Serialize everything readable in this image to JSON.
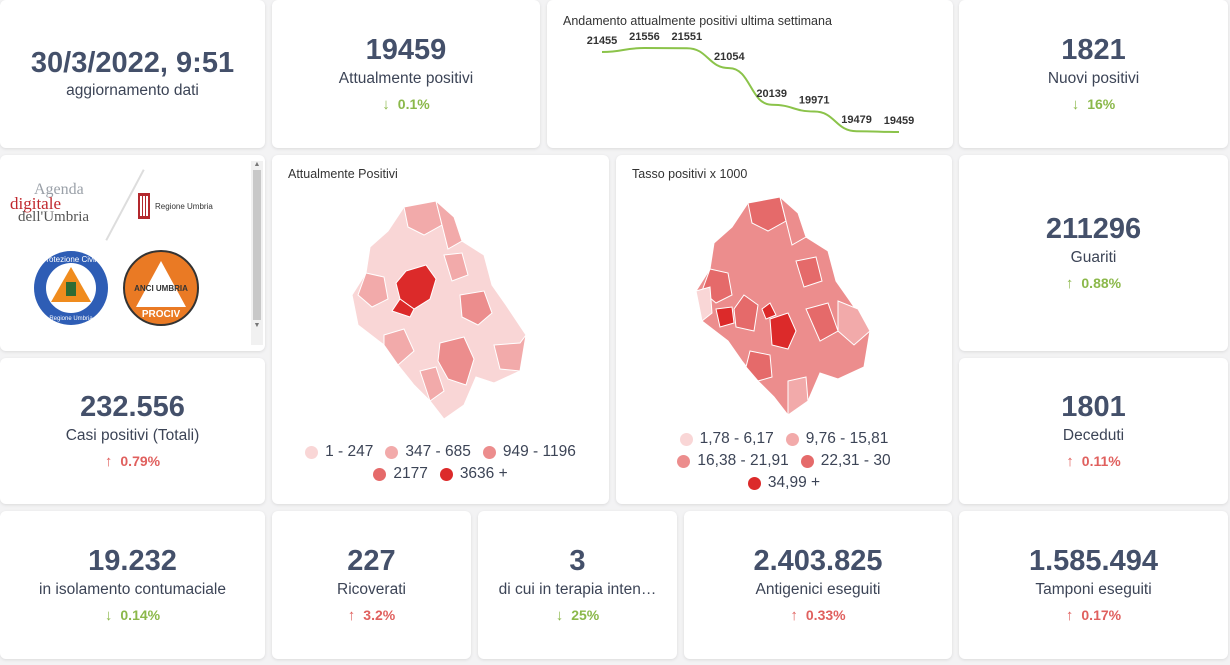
{
  "update": {
    "value": "30/3/2022, 9:51",
    "label": "aggiornamento dati"
  },
  "attualmente_positivi": {
    "value": "19459",
    "label": "Attualmente positivi",
    "change": "0.1%"
  },
  "trend": {
    "title": "Andamento attualmente positivi ultima settimana",
    "chart_data": {
      "type": "line",
      "values": [
        21455,
        21556,
        21551,
        21054,
        20139,
        19971,
        19479,
        19459
      ],
      "labels": [
        "21455",
        "21556",
        "21551",
        "21054",
        "20139",
        "19971",
        "19479",
        "19459"
      ]
    }
  },
  "nuovi_positivi": {
    "value": "1821",
    "label": "Nuovi positivi",
    "change": "16%"
  },
  "logos": {
    "agenda_line1": "Agenda",
    "agenda_line2": "digitale",
    "agenda_line3": "dell'Umbria",
    "regione": "Regione Umbria",
    "protezione_top": "Protezione Civile",
    "protezione_bottom": "Regione Umbria",
    "anci": "ANCI UMBRIA",
    "prociv": "PROCIV"
  },
  "map1": {
    "title": "Attualmente Positivi",
    "legend": [
      {
        "label": "1 - 247",
        "color": "#f9d6d6"
      },
      {
        "label": "347 - 685",
        "color": "#f2aaaa"
      },
      {
        "label": "949 - 1196",
        "color": "#ec8d8d"
      },
      {
        "label": "2177",
        "color": "#e56a6a"
      },
      {
        "label": "3636 +",
        "color": "#dc2a2a"
      }
    ]
  },
  "map2": {
    "title": "Tasso positivi x 1000",
    "legend": [
      {
        "label": "1,78 - 6,17",
        "color": "#f9d6d6"
      },
      {
        "label": "9,76 - 15,81",
        "color": "#f2aaaa"
      },
      {
        "label": "16,38 - 21,91",
        "color": "#ec8d8d"
      },
      {
        "label": "22,31 - 30",
        "color": "#e56a6a"
      },
      {
        "label": "34,99 +",
        "color": "#dc2a2a"
      }
    ]
  },
  "guariti": {
    "value": "211296",
    "label": "Guariti",
    "change": "0.88%"
  },
  "casi_totali": {
    "value": "232.556",
    "label": "Casi positivi (Totali)",
    "change": "0.79%"
  },
  "deceduti": {
    "value": "1801",
    "label": "Deceduti",
    "change": "0.11%"
  },
  "isolamento": {
    "value": "19.232",
    "label": "in isolamento contumaciale",
    "change": "0.14%"
  },
  "ricoverati": {
    "value": "227",
    "label": "Ricoverati",
    "change": "3.2%"
  },
  "terapia": {
    "value": "3",
    "label": "di cui in terapia inten…",
    "change": "25%"
  },
  "antigenici": {
    "value": "2.403.825",
    "label": "Antigenici eseguiti",
    "change": "0.33%"
  },
  "tamponi": {
    "value": "1.585.494",
    "label": "Tamponi eseguiti",
    "change": "0.17%"
  },
  "colors": {
    "accent": "#44506a",
    "up": "#e0605e",
    "down": "#8bb84a",
    "line": "#8bc34a"
  },
  "icons": {
    "up": "arrow-up-icon",
    "down": "arrow-down-icon"
  }
}
